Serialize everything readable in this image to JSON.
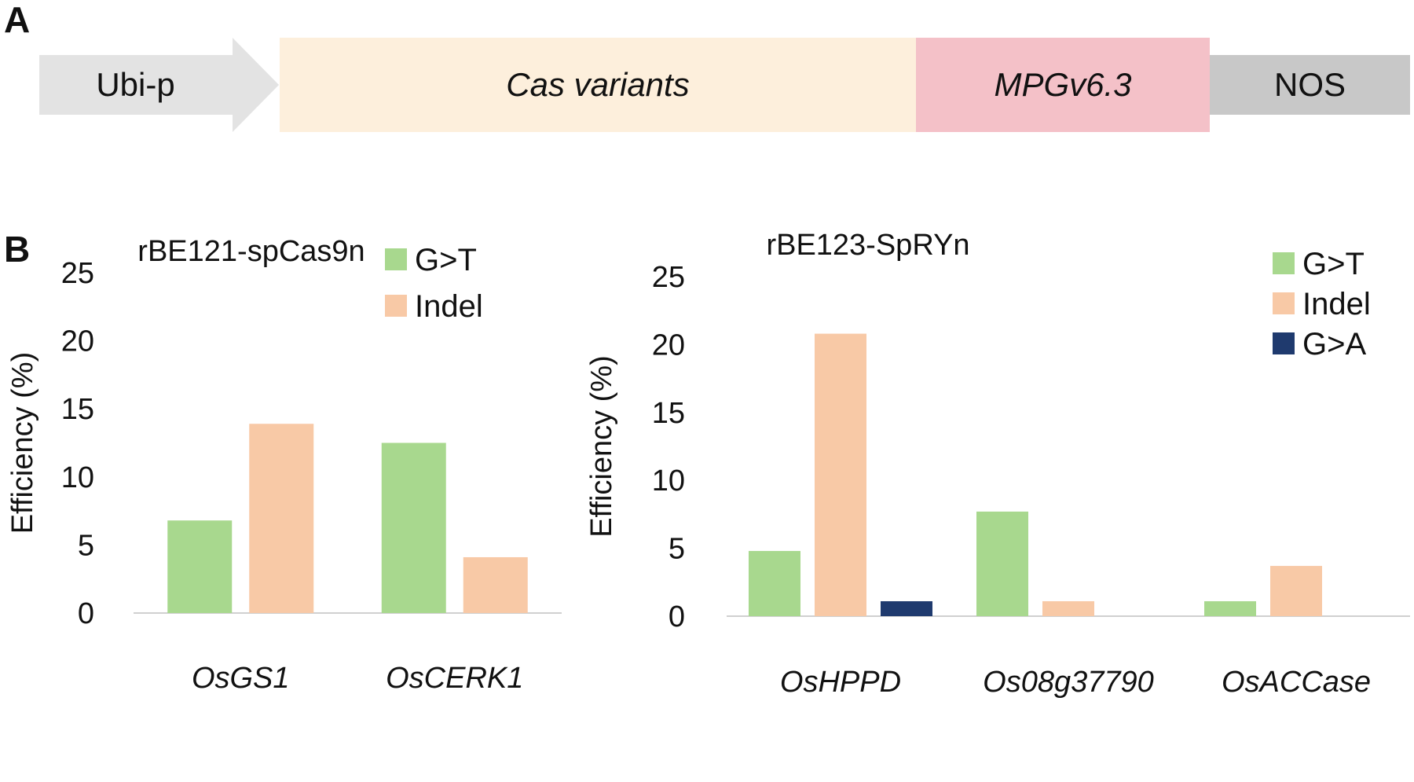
{
  "panels": {
    "a": "A",
    "b": "B"
  },
  "construct": [
    {
      "label": "Ubi-p",
      "italic": false,
      "color": "#e3e3e3"
    },
    {
      "label": "Cas variants",
      "italic": true,
      "color": "#fdefdc"
    },
    {
      "label": "MPGv6.3",
      "italic": true,
      "color": "#f4c1c8"
    },
    {
      "label": "NOS",
      "italic": false,
      "color": "#c8c8c8"
    }
  ],
  "chart_data": [
    {
      "type": "bar",
      "title": "rBE121-spCas9n",
      "ylabel": "Efficiency (%)",
      "ylim": [
        0,
        25
      ],
      "yticks": [
        0,
        5,
        10,
        15,
        20,
        25
      ],
      "categories": [
        "OsGS1",
        "OsCERK1"
      ],
      "series": [
        {
          "name": "G>T",
          "color": "#a8d88e",
          "values": [
            6.8,
            12.5
          ]
        },
        {
          "name": "Indel",
          "color": "#f8c9a6",
          "values": [
            13.9,
            4.1
          ]
        }
      ],
      "legend": "top-right",
      "grid": false
    },
    {
      "type": "bar",
      "title": "rBE123-SpRYn",
      "ylabel": "Efficiency (%)",
      "ylim": [
        0,
        25
      ],
      "yticks": [
        0,
        5,
        10,
        15,
        20,
        25
      ],
      "categories": [
        "OsHPPD",
        "Os08g37790",
        "OsACCase"
      ],
      "series": [
        {
          "name": "G>T",
          "color": "#a8d88e",
          "values": [
            4.8,
            7.7,
            1.1
          ]
        },
        {
          "name": "Indel",
          "color": "#f8c9a6",
          "values": [
            20.8,
            1.1,
            3.7
          ]
        },
        {
          "name": "G>A",
          "color": "#1f3a6e",
          "values": [
            1.1,
            0,
            0
          ]
        }
      ],
      "legend": "top-right",
      "grid": false
    }
  ]
}
